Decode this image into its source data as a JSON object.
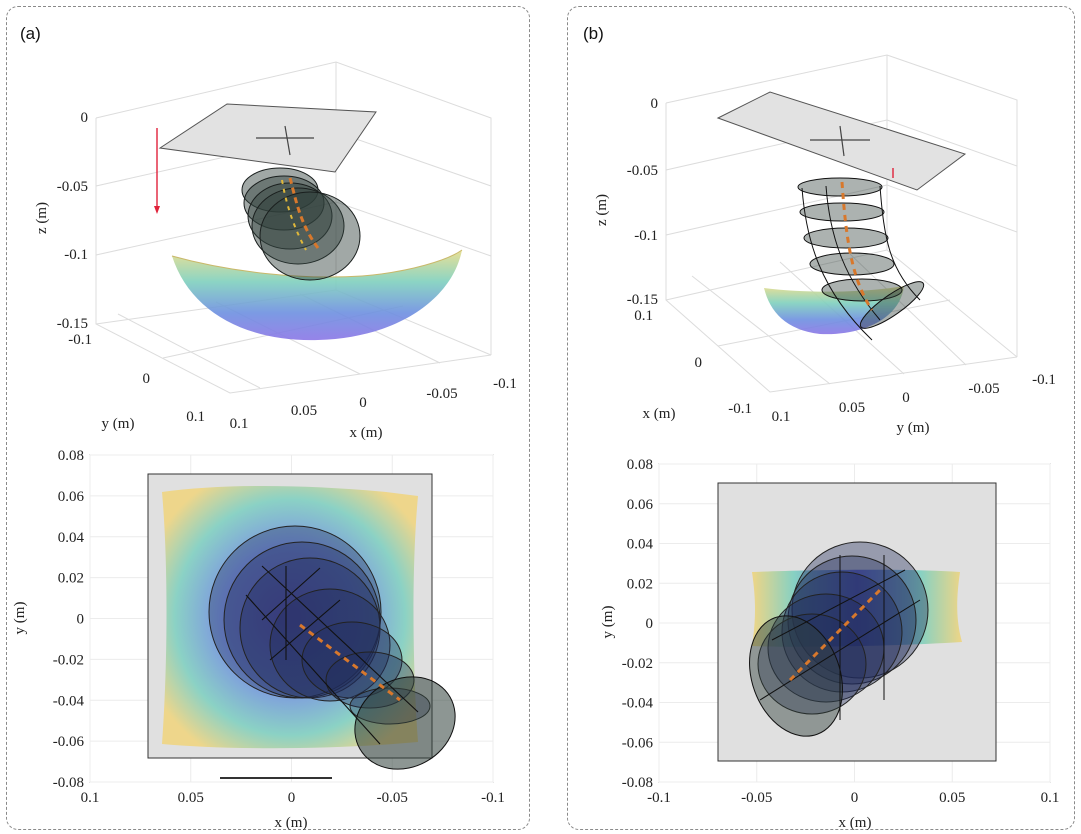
{
  "panels": {
    "a": {
      "label": "(a)"
    },
    "b": {
      "label": "(b)"
    }
  },
  "colors": {
    "plate": "#e2e2e2",
    "disk": "#2f3f3a",
    "surface_low": "#5e4fd6",
    "surface_mid": "#6fc6c0",
    "surface_high": "#f2d27a",
    "arrow": "#e0223a",
    "grid": "#e3e3e3"
  },
  "chart_data": [
    {
      "type": "3d-surface",
      "panel": "a",
      "axes": {
        "z": {
          "label": "z (m)",
          "ticks": [
            "0",
            "-0.05",
            "-0.1",
            "-0.15"
          ]
        },
        "y": {
          "label": "y (m)",
          "ticks": [
            "-0.1",
            "0",
            "0.1"
          ]
        },
        "x": {
          "label": "x (m)",
          "ticks": [
            "0.1",
            "0.05",
            "0",
            "-0.05",
            "-0.1"
          ]
        }
      },
      "grid": true
    },
    {
      "type": "top-view",
      "panel": "a",
      "axes": {
        "y": {
          "label": "y (m)",
          "ticks": [
            "0.08",
            "0.06",
            "0.04",
            "0.02",
            "0",
            "-0.02",
            "-0.04",
            "-0.06",
            "-0.08"
          ],
          "range": [
            -0.08,
            0.08
          ]
        },
        "x": {
          "label": "x (m)",
          "ticks": [
            "0.1",
            "0.05",
            "0",
            "-0.05",
            "-0.1"
          ],
          "range": [
            0.1,
            -0.1
          ]
        }
      },
      "grid": true
    },
    {
      "type": "3d-surface",
      "panel": "b",
      "axes": {
        "z": {
          "label": "z (m)",
          "ticks": [
            "0",
            "-0.05",
            "-0.1",
            "-0.15"
          ]
        },
        "x": {
          "label": "x (m)",
          "ticks": [
            "0.1",
            "0",
            "-0.1"
          ]
        },
        "y": {
          "label": "y (m)",
          "ticks": [
            "0.1",
            "0.05",
            "0",
            "-0.05",
            "-0.1"
          ]
        }
      },
      "grid": true
    },
    {
      "type": "top-view",
      "panel": "b",
      "axes": {
        "y": {
          "label": "y (m)",
          "ticks": [
            "0.08",
            "0.06",
            "0.04",
            "0.02",
            "0",
            "-0.02",
            "-0.04",
            "-0.06",
            "-0.08"
          ],
          "range": [
            -0.08,
            0.08
          ]
        },
        "x": {
          "label": "x (m)",
          "ticks": [
            "-0.1",
            "-0.05",
            "0",
            "0.05",
            "0.1"
          ],
          "range": [
            -0.1,
            0.1
          ]
        }
      },
      "grid": true
    }
  ]
}
